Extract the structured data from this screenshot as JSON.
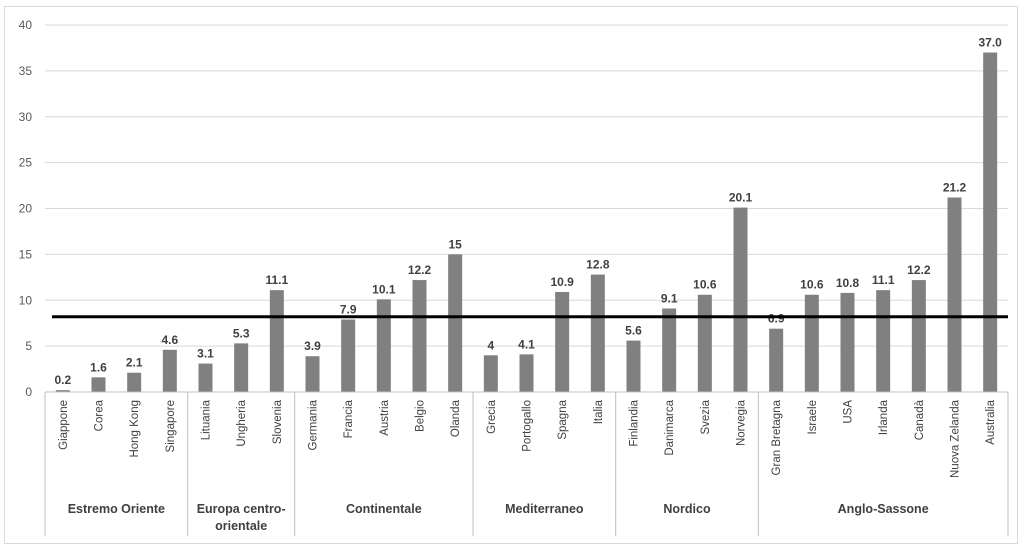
{
  "chart_data": {
    "type": "bar",
    "title": "",
    "xlabel": "",
    "ylabel": "",
    "ylim": [
      0,
      40
    ],
    "yticks": [
      0,
      5,
      10,
      15,
      20,
      25,
      30,
      35,
      40
    ],
    "grid": true,
    "bar_color": "#808080",
    "reference_line": {
      "value": 8.2,
      "color": "#000000"
    },
    "groups": [
      {
        "name": "Estremo Oriente",
        "categories": [
          "Giappone",
          "Corea",
          "Hong Kong",
          "Singapore"
        ],
        "values": [
          0.2,
          1.6,
          2.1,
          4.6
        ],
        "labels": [
          "0.2",
          "1.6",
          "2.1",
          "4.6"
        ]
      },
      {
        "name": "Europa centro-\norientale",
        "categories": [
          "Lituania",
          "Ungheria",
          "Slovenia"
        ],
        "values": [
          3.1,
          5.3,
          11.1
        ],
        "labels": [
          "3.1",
          "5.3",
          "11.1"
        ]
      },
      {
        "name": "Continentale",
        "categories": [
          "Germania",
          "Francia",
          "Austria",
          "Belgio",
          "Olanda"
        ],
        "values": [
          3.9,
          7.9,
          10.1,
          12.2,
          15
        ],
        "labels": [
          "3.9",
          "7.9",
          "10.1",
          "12.2",
          "15"
        ]
      },
      {
        "name": "Mediterraneo",
        "categories": [
          "Grecia",
          "Portogallo",
          "Spagna",
          "Italia"
        ],
        "values": [
          4,
          4.1,
          10.9,
          12.8
        ],
        "labels": [
          "4",
          "4.1",
          "10.9",
          "12.8"
        ]
      },
      {
        "name": "Nordico",
        "categories": [
          "Finlandia",
          "Danimarca",
          "Svezia",
          "Norvegia"
        ],
        "values": [
          5.6,
          9.1,
          10.6,
          20.1
        ],
        "labels": [
          "5.6",
          "9.1",
          "10.6",
          "20.1"
        ]
      },
      {
        "name": "Anglo-Sassone",
        "categories": [
          "Gran Bretagna",
          "Israele",
          "USA",
          "Irlanda",
          "Canadà",
          "Nuova Zelanda",
          "Australia"
        ],
        "values": [
          6.9,
          10.6,
          10.8,
          11.1,
          12.2,
          21.2,
          37.0
        ],
        "labels": [
          "6.9",
          "10.6",
          "10.8",
          "11.1",
          "12.2",
          "21.2",
          "37.0"
        ]
      }
    ]
  }
}
